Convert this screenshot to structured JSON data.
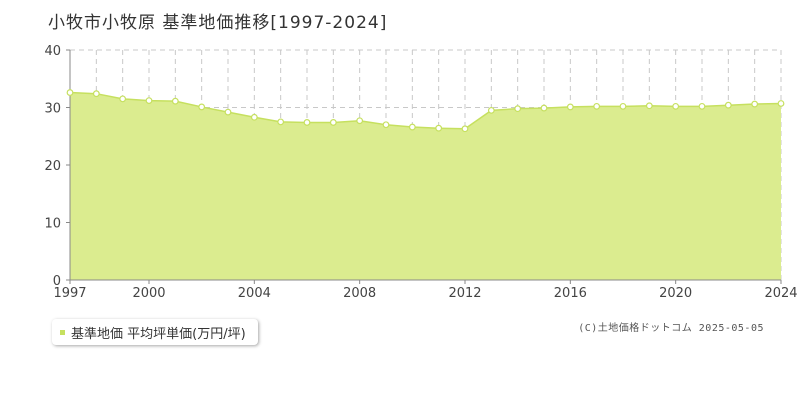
{
  "colors": {
    "area_fill": "#dbec8f",
    "line": "#c6e05f",
    "marker_fill": "#ffffff",
    "grid": "#c8c8c8",
    "axis": "#888888"
  },
  "chart_data": {
    "type": "area",
    "title": "小牧市小牧原 基準地価推移[1997-2024]",
    "xlabel": "",
    "ylabel": "",
    "xlim": [
      1997,
      2024
    ],
    "ylim": [
      0,
      40
    ],
    "x_ticks": [
      "1997",
      "2000",
      "2004",
      "2008",
      "2012",
      "2016",
      "2020",
      "2024"
    ],
    "y_ticks": [
      "0",
      "10",
      "20",
      "30",
      "40"
    ],
    "grid": true,
    "legend_position": "bottom-left",
    "series": [
      {
        "name": "基準地価 平均坪単価(万円/坪)",
        "x": [
          1997,
          1998,
          1999,
          2000,
          2001,
          2002,
          2003,
          2004,
          2005,
          2006,
          2007,
          2008,
          2009,
          2010,
          2011,
          2012,
          2013,
          2014,
          2015,
          2016,
          2017,
          2018,
          2019,
          2020,
          2021,
          2022,
          2023,
          2024
        ],
        "values": [
          32.6,
          32.4,
          31.5,
          31.2,
          31.1,
          30.1,
          29.2,
          28.3,
          27.5,
          27.4,
          27.4,
          27.7,
          27.0,
          26.6,
          26.4,
          26.3,
          29.5,
          29.8,
          29.9,
          30.1,
          30.2,
          30.2,
          30.3,
          30.2,
          30.2,
          30.4,
          30.6,
          30.7
        ]
      }
    ]
  },
  "copyright": "(C)土地価格ドットコム 2025-05-05"
}
